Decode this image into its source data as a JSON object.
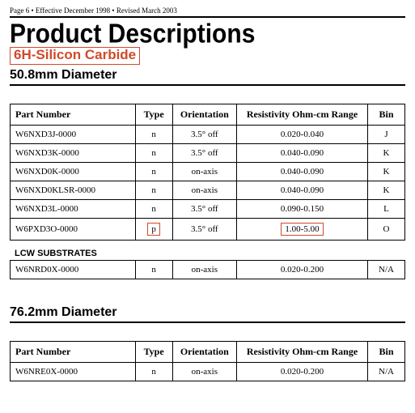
{
  "header": "Page 6 • Effective December 1998 • Revised March 2003",
  "title": "Product Descriptions",
  "subtitle": "6H-Silicon Carbide",
  "columns": {
    "part": "Part Number",
    "type": "Type",
    "orient": "Orientation",
    "res": "Resistivity Ohm-cm Range",
    "bin": "Bin"
  },
  "section1": {
    "heading": "50.8mm Diameter",
    "rows": [
      {
        "part": "W6NXD3J-0000",
        "type": "n",
        "orient": "3.5° off",
        "res": "0.020-0.040",
        "bin": "J",
        "hl_type": false,
        "hl_res": false
      },
      {
        "part": "W6NXD3K-0000",
        "type": "n",
        "orient": "3.5° off",
        "res": "0.040-0.090",
        "bin": "K",
        "hl_type": false,
        "hl_res": false
      },
      {
        "part": "W6NXD0K-0000",
        "type": "n",
        "orient": "on-axis",
        "res": "0.040-0.090",
        "bin": "K",
        "hl_type": false,
        "hl_res": false
      },
      {
        "part": "W6NXD0KLSR-0000",
        "type": "n",
        "orient": "on-axis",
        "res": "0.040-0.090",
        "bin": "K",
        "hl_type": false,
        "hl_res": false
      },
      {
        "part": "W6NXD3L-0000",
        "type": "n",
        "orient": "3.5° off",
        "res": "0.090-0.150",
        "bin": "L",
        "hl_type": false,
        "hl_res": false
      },
      {
        "part": "W6PXD3O-0000",
        "type": "p",
        "orient": "3.5° off",
        "res": "1.00-5.00",
        "bin": "O",
        "hl_type": true,
        "hl_res": true
      }
    ],
    "sub_label": "LCW SUBSTRATES",
    "sub_rows": [
      {
        "part": "W6NRD0X-0000",
        "type": "n",
        "orient": "on-axis",
        "res": "0.020-0.200",
        "bin": "N/A"
      }
    ]
  },
  "section2": {
    "heading": "76.2mm Diameter",
    "rows": [
      {
        "part": "W6NRE0X-0000",
        "type": "n",
        "orient": "on-axis",
        "res": "0.020-0.200",
        "bin": "N/A"
      }
    ]
  }
}
